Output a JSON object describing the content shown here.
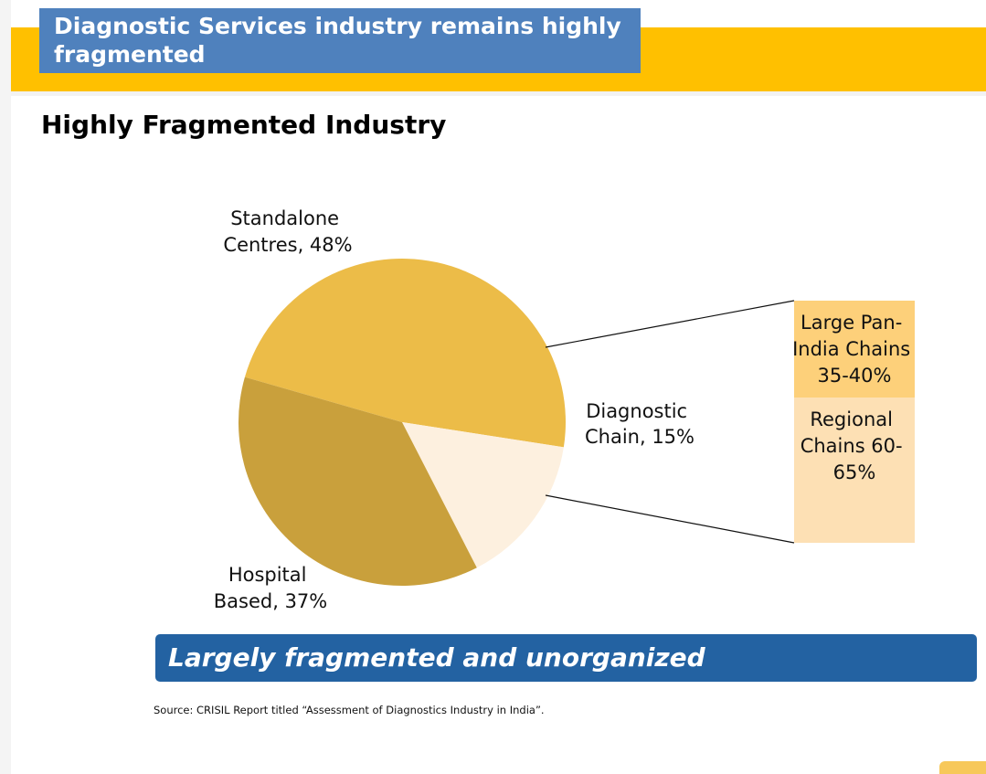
{
  "header": {
    "title": "Diagnostic Services industry remains highly fragmented"
  },
  "section_title": "Highly Fragmented Industry",
  "colors": {
    "header_bg": "#4f81bd",
    "band": "#ffc000",
    "standalone": "#ecbc48",
    "hospital": "#c9a03c",
    "diagnostic_chain": "#fdf0df",
    "large_pan_india": "#fdd07a",
    "regional": "#fde0b4",
    "banner": "#2362a2"
  },
  "chart_data": {
    "type": "pie",
    "series": [
      {
        "name": "Standalone Centres",
        "value": 48,
        "label_lines": [
          "Standalone",
          "Centres, 48%"
        ]
      },
      {
        "name": "Diagnostic Chain",
        "value": 15,
        "label_lines": [
          "Diagnostic",
          "Chain, 15%"
        ]
      },
      {
        "name": "Hospital Based",
        "value": 37,
        "label_lines": [
          "Hospital",
          "Based, 37%"
        ]
      }
    ],
    "breakdown": {
      "of": "Diagnostic Chain",
      "segments": [
        {
          "name": "Large Pan-India Chains",
          "value": "35-40%",
          "label_lines": [
            "Large Pan-",
            "India Chains",
            "35-40%"
          ]
        },
        {
          "name": "Regional Chains",
          "value": "60-65%",
          "label_lines": [
            "Regional",
            "Chains 60-",
            "65%"
          ]
        }
      ]
    }
  },
  "banner": {
    "text": "Largely fragmented and unorganized"
  },
  "source": {
    "text": "Source: CRISIL Report titled “Assessment of Diagnostics Industry in India”."
  }
}
